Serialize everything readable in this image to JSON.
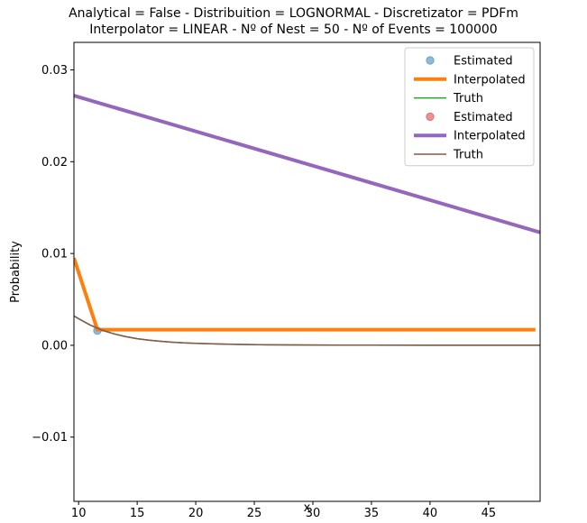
{
  "chart_data": {
    "type": "line",
    "title": "Analytical = False - Distribuition = LOGNORMAL - Discretizator = PDFm",
    "subtitle": "Interpolator = LINEAR - Nº of Nest = 50 - Nº of Events = 100000",
    "xlabel": "x",
    "ylabel": "Probability",
    "xlim": [
      9.6,
      49.4
    ],
    "ylim": [
      -0.017,
      0.033
    ],
    "xticks": [
      10,
      15,
      20,
      25,
      30,
      35,
      40,
      45
    ],
    "yticks": [
      -0.01,
      0.0,
      0.01,
      0.02,
      0.03
    ],
    "ytick_labels": [
      "−0.01",
      "0.00",
      "0.01",
      "0.02",
      "0.03"
    ],
    "legend_position": "top-right",
    "series": [
      {
        "name": "Estimated",
        "kind": "points",
        "color": "#1f77b4",
        "alpha": 0.5,
        "x": [
          11.6
        ],
        "y": [
          0.0016
        ]
      },
      {
        "name": "Interpolated",
        "kind": "line",
        "color": "#ff7f0e",
        "width": 4,
        "x": [
          9.6,
          11.6,
          49.0
        ],
        "y": [
          0.0095,
          0.0017,
          0.0017
        ]
      },
      {
        "name": "Truth",
        "kind": "line",
        "color": "#2ca02c",
        "width": 1.5,
        "x": [
          9.6,
          10,
          11,
          12,
          13,
          14,
          15,
          16,
          17,
          18,
          19,
          20,
          22,
          24,
          26,
          28,
          30,
          35,
          40,
          45,
          49.4
        ],
        "y": [
          0.0032,
          0.0029,
          0.0022,
          0.00165,
          0.00125,
          0.00095,
          0.00072,
          0.00056,
          0.00044,
          0.00034,
          0.00027,
          0.00022,
          0.00014,
          9e-05,
          6e-05,
          4e-05,
          3e-05,
          1.5e-05,
          8e-06,
          5e-06,
          3e-06
        ]
      },
      {
        "name": "Estimated",
        "kind": "points",
        "color": "#d62728",
        "alpha": 0.5,
        "x": [],
        "y": []
      },
      {
        "name": "Interpolated",
        "kind": "line",
        "color": "#9467bd",
        "width": 4,
        "x": [
          9.6,
          49.4
        ],
        "y": [
          0.0272,
          0.0123
        ]
      },
      {
        "name": "Truth",
        "kind": "line",
        "color": "#8c564b",
        "width": 1.5,
        "x": [
          9.6,
          10,
          11,
          12,
          13,
          14,
          15,
          16,
          17,
          18,
          19,
          20,
          22,
          24,
          26,
          28,
          30,
          35,
          40,
          45,
          49.4
        ],
        "y": [
          0.0032,
          0.0029,
          0.0022,
          0.00165,
          0.00125,
          0.00095,
          0.00072,
          0.00056,
          0.00044,
          0.00034,
          0.00027,
          0.00022,
          0.00014,
          9e-05,
          6e-05,
          4e-05,
          3e-05,
          1.5e-05,
          8e-06,
          5e-06,
          3e-06
        ]
      }
    ]
  }
}
